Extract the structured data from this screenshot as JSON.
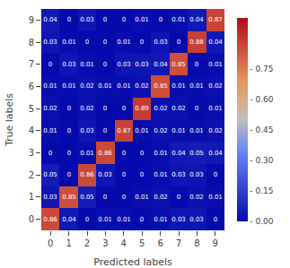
{
  "chart_data": {
    "type": "heatmap",
    "xlabel": "Predicted labels",
    "ylabel": "True labels",
    "categories": [
      "0",
      "1",
      "2",
      "3",
      "4",
      "5",
      "6",
      "7",
      "8",
      "9"
    ],
    "y_categories": [
      "0",
      "1",
      "2",
      "3",
      "4",
      "5",
      "6",
      "7",
      "8",
      "9"
    ],
    "matrix": [
      [
        0.86,
        0.04,
        0.0,
        0.01,
        0.01,
        0.0,
        0.01,
        0.03,
        0.03,
        0.0
      ],
      [
        0.03,
        0.85,
        0.05,
        0.0,
        0.0,
        0.01,
        0.02,
        0.0,
        0.02,
        0.01
      ],
      [
        0.05,
        0.0,
        0.86,
        0.03,
        0.0,
        0.0,
        0.01,
        0.03,
        0.03,
        0.0
      ],
      [
        0.0,
        0.0,
        0.01,
        0.86,
        0.0,
        0.0,
        0.01,
        0.04,
        0.05,
        0.04
      ],
      [
        0.01,
        0.0,
        0.03,
        0.0,
        0.87,
        0.01,
        0.02,
        0.01,
        0.01,
        0.02
      ],
      [
        0.02,
        0.0,
        0.02,
        0.0,
        0.0,
        0.89,
        0.02,
        0.02,
        0.0,
        0.01
      ],
      [
        0.01,
        0.01,
        0.02,
        0.01,
        0.01,
        0.02,
        0.85,
        0.01,
        0.01,
        0.02
      ],
      [
        0.0,
        0.03,
        0.01,
        0.0,
        0.03,
        0.03,
        0.04,
        0.85,
        0.0,
        0.01
      ],
      [
        0.03,
        0.01,
        0.0,
        0.0,
        0.01,
        0.0,
        0.03,
        0.0,
        0.88,
        0.04
      ],
      [
        0.04,
        0.0,
        0.03,
        0.0,
        0.0,
        0.01,
        0.0,
        0.01,
        0.04,
        0.87
      ]
    ],
    "color_range": [
      0.0,
      1.0
    ],
    "color_ticks": [
      {
        "value": 0.0,
        "label": "- 0.00"
      },
      {
        "value": 0.15,
        "label": "- 0.15"
      },
      {
        "value": 0.3,
        "label": "- 0.30"
      },
      {
        "value": 0.45,
        "label": "- 0.45"
      },
      {
        "value": 0.6,
        "label": "- 0.60"
      },
      {
        "value": 0.75,
        "label": "- 0.75"
      }
    ],
    "data_labels": true,
    "grid": false
  }
}
